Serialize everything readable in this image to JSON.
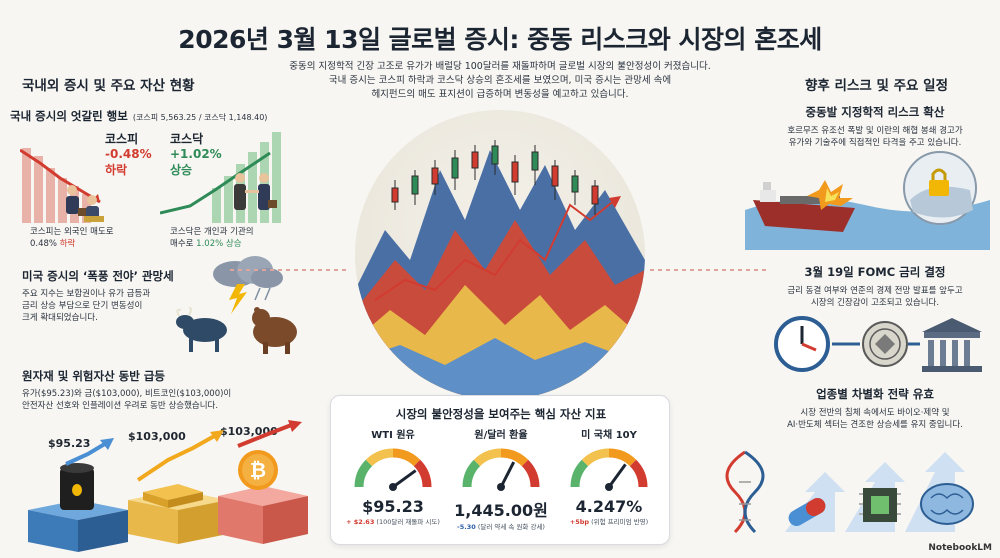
{
  "header": {
    "title": "2026년 3월 13일 글로벌 증시: 중동 리스크와 시장의 혼조세",
    "subtitle_lines": [
      "중동의 지정학적 긴장 고조로 유가가 배럴당 100달러를 재돌파하며 글로벌 시장의 불안정성이 커졌습니다.",
      "국내 증시는 코스피 하락과 코스닥 상승의 혼조세를 보였으며, 미국 증시는 관망세 속에",
      "헤지펀드의 매도 표지션이 급증하며 변동성을 예고하고 있습니다."
    ]
  },
  "left": {
    "section_title": "국내외 증시 및 주요 자산 현황",
    "domestic": {
      "title": "국내 증시의 엇갈린 행보",
      "title_note": "(코스피 5,563.25 / 코스닥 1,148.40)",
      "kospi": {
        "name": "코스피",
        "change": "-0.48%",
        "direction": "하락"
      },
      "kosdaq": {
        "name": "코스닥",
        "change": "+1.02%",
        "direction": "상승"
      },
      "kospi_note_1": "코스피는 외국인 매도로",
      "kospi_note_2_prefix": "0.48% ",
      "kospi_note_2_hl": "하락",
      "kosdaq_note_1": "코스닥은 개인과 기관의",
      "kosdaq_note_2_prefix": "매수로 ",
      "kosdaq_note_2_hl": "1.02% 상승"
    },
    "us": {
      "title": "미국 증시의 ‘폭풍 전야’ 관망세",
      "lines": [
        "주요 지수는 보합권이나 유가 급등과",
        "금리 상승 부담으로 단기 변동성이",
        "크게 확대되었습니다."
      ]
    },
    "commodities": {
      "title": "원자재 및 위험자산 동반 급등",
      "lines": [
        "유가($95.23)와 금($103,000), 비트코인($103,000)이",
        "안전자산 선호와 인플레이션 우려로 동반 상승했습니다."
      ],
      "oil_label": "$95.23",
      "gold_label": "$103,000",
      "btc_label": "$103,000"
    }
  },
  "center": {
    "panel_title": "시장의 불안정성을 보여주는 핵심 자산 지표",
    "gauges": [
      {
        "name": "WTI 원유",
        "value": "$95.23",
        "change_hl": "+ $2.63",
        "change_note": " (100달러 재돌파 시도)",
        "level": 0.8,
        "hl_color": "#d23b2f"
      },
      {
        "name": "원/달러 환율",
        "value": "1,445.00원",
        "change_hl": "-5.30",
        "change_note": " (달러 약세 속 원화 강세)",
        "level": 0.65,
        "hl_color": "#2b5fa8"
      },
      {
        "name": "미 국채 10Y",
        "value": "4.247%",
        "change_hl": "+5bp",
        "change_note": " (위험 프리미엄 반영)",
        "level": 0.7,
        "hl_color": "#d23b2f"
      }
    ]
  },
  "right": {
    "section_title": "향후 리스크 및 주요 일정",
    "geo": {
      "title": "중동발 지정학적 리스크 확산",
      "lines": [
        "호르무즈 유조선 폭발 및 이란의 해협 봉쇄 경고가",
        "유가와 기술주에 직접적인 타격을 주고 있습니다."
      ]
    },
    "fomc": {
      "title": "3월 19일 FOMC 금리 결정",
      "lines": [
        "금리 동결 여부와 연준의 경제 전망 발표를 앞두고",
        "시장의 긴장감이 고조되고 있습니다."
      ]
    },
    "sector": {
      "title": "업종별 차별화 전략 유효",
      "lines": [
        "시장 전반의 침체 속에서도 바이오·제약 및",
        "AI·반도체 섹터는 견조한 상승세를 유지 중입니다."
      ]
    }
  },
  "footer": {
    "brand": "NotebookLM"
  },
  "colors": {
    "red": "#d23b2f",
    "green": "#2e8b57",
    "blue": "#2b5fa8",
    "navy": "#1c2532"
  },
  "icons": [
    "bar-chart-icon",
    "bull-icon",
    "bear-icon",
    "storm-cloud-icon",
    "oil-barrel-icon",
    "gold-bars-icon",
    "bitcoin-icon",
    "tanker-icon",
    "lock-icon",
    "clock-icon",
    "fed-seal-icon",
    "bank-building-icon",
    "dna-icon",
    "pill-icon",
    "chip-icon",
    "brain-icon"
  ]
}
